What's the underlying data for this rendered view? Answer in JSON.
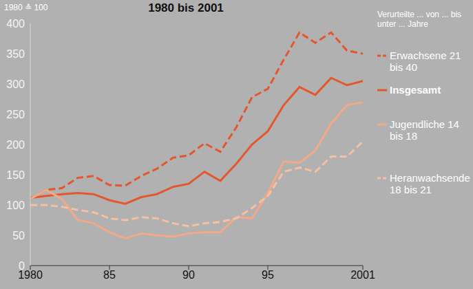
{
  "chart_data": {
    "type": "line",
    "title": "1980 bis 2001",
    "y_label": "1980 ≙ 100",
    "legend_title": "Verurteilte ... von ... bis unter ... Jahre",
    "legend": "right",
    "grid": false,
    "x": [
      1980,
      1981,
      1982,
      1983,
      1984,
      1985,
      1986,
      1987,
      1988,
      1989,
      1990,
      1991,
      1992,
      1993,
      1994,
      1995,
      1996,
      1997,
      1998,
      1999,
      2000,
      2001
    ],
    "xlim": [
      1980,
      2001
    ],
    "xticks": [
      1980,
      {
        "value": 1985,
        "label": "85"
      },
      {
        "value": 1990,
        "label": "90"
      },
      {
        "value": 1995,
        "label": "95"
      },
      2001
    ],
    "ylim": [
      0,
      400
    ],
    "yticks": [
      0,
      50,
      100,
      150,
      200,
      250,
      300,
      350,
      400
    ],
    "series": [
      {
        "name": "Erwachsene 21 bis 40",
        "color": "#e4572e",
        "line_style": "dashed",
        "values": [
          110,
          125,
          128,
          145,
          148,
          133,
          132,
          148,
          160,
          178,
          182,
          202,
          188,
          228,
          278,
          292,
          340,
          385,
          368,
          385,
          355,
          350
        ]
      },
      {
        "name": "Insgesamt",
        "color": "#e4572e",
        "line_style": "solid",
        "values": [
          112,
          115,
          118,
          120,
          118,
          108,
          102,
          113,
          118,
          130,
          135,
          155,
          140,
          168,
          200,
          222,
          265,
          295,
          282,
          310,
          298,
          305
        ]
      },
      {
        "name": "Jugendliche 14 bis 18",
        "color": "#f3a987",
        "line_style": "solid",
        "values": [
          110,
          125,
          110,
          75,
          70,
          55,
          45,
          53,
          50,
          48,
          53,
          55,
          55,
          80,
          78,
          120,
          172,
          170,
          190,
          235,
          265,
          270
        ]
      },
      {
        "name": "Heranwachsende 18 bis 21",
        "color": "#f7c0a2",
        "line_style": "dashed",
        "values": [
          100,
          100,
          97,
          92,
          88,
          78,
          75,
          80,
          78,
          70,
          65,
          70,
          72,
          78,
          95,
          115,
          155,
          162,
          155,
          180,
          180,
          205
        ]
      }
    ]
  }
}
